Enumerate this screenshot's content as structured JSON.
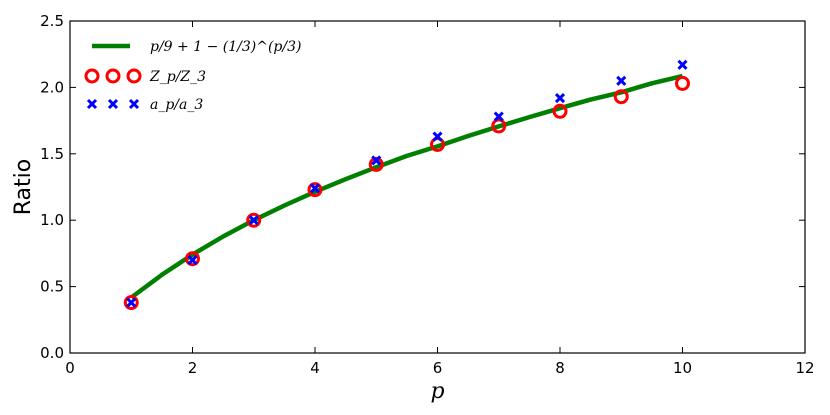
{
  "chart_data": {
    "type": "line",
    "xlabel": "p",
    "ylabel": "Ratio",
    "xlim": [
      0,
      12
    ],
    "ylim": [
      0.0,
      2.5
    ],
    "x_ticks": [
      0,
      2,
      4,
      6,
      8,
      10,
      12
    ],
    "x_tick_labels": [
      "0",
      "2",
      "4",
      "6",
      "8",
      "10",
      "12"
    ],
    "y_ticks": [
      0.0,
      0.5,
      1.0,
      1.5,
      2.0,
      2.5
    ],
    "y_tick_labels": [
      "0.0",
      "0.5",
      "1.0",
      "1.5",
      "2.0",
      "2.5"
    ],
    "grid": false,
    "legend_position": "top-left",
    "series": [
      {
        "name": "p/9 + 1 − (1/3)^(p/3)",
        "kind": "line",
        "color": "#008000",
        "x": [
          1,
          1.5,
          2,
          2.5,
          3,
          3.5,
          4,
          4.5,
          5,
          5.5,
          6,
          6.5,
          7,
          7.5,
          8,
          8.5,
          9,
          9.5,
          10
        ],
        "values": [
          0.418,
          0.589,
          0.741,
          0.877,
          1.0,
          1.111,
          1.214,
          1.309,
          1.399,
          1.484,
          1.556,
          1.634,
          1.706,
          1.776,
          1.843,
          1.908,
          1.963,
          2.031,
          2.085
        ]
      },
      {
        "name": "Z_p/Z_3",
        "kind": "scatter",
        "marker": "circle",
        "color": "#ff0000",
        "x": [
          1,
          2,
          3,
          4,
          5,
          6,
          7,
          8,
          9,
          10
        ],
        "values": [
          0.38,
          0.71,
          1.0,
          1.23,
          1.42,
          1.57,
          1.71,
          1.82,
          1.93,
          2.03
        ]
      },
      {
        "name": "a_p/a_3",
        "kind": "scatter",
        "marker": "x",
        "color": "#0000ff",
        "x": [
          1,
          2,
          3,
          4,
          5,
          6,
          7,
          8,
          9,
          10
        ],
        "values": [
          0.38,
          0.7,
          1.0,
          1.24,
          1.45,
          1.63,
          1.78,
          1.92,
          2.05,
          2.17
        ]
      }
    ]
  }
}
